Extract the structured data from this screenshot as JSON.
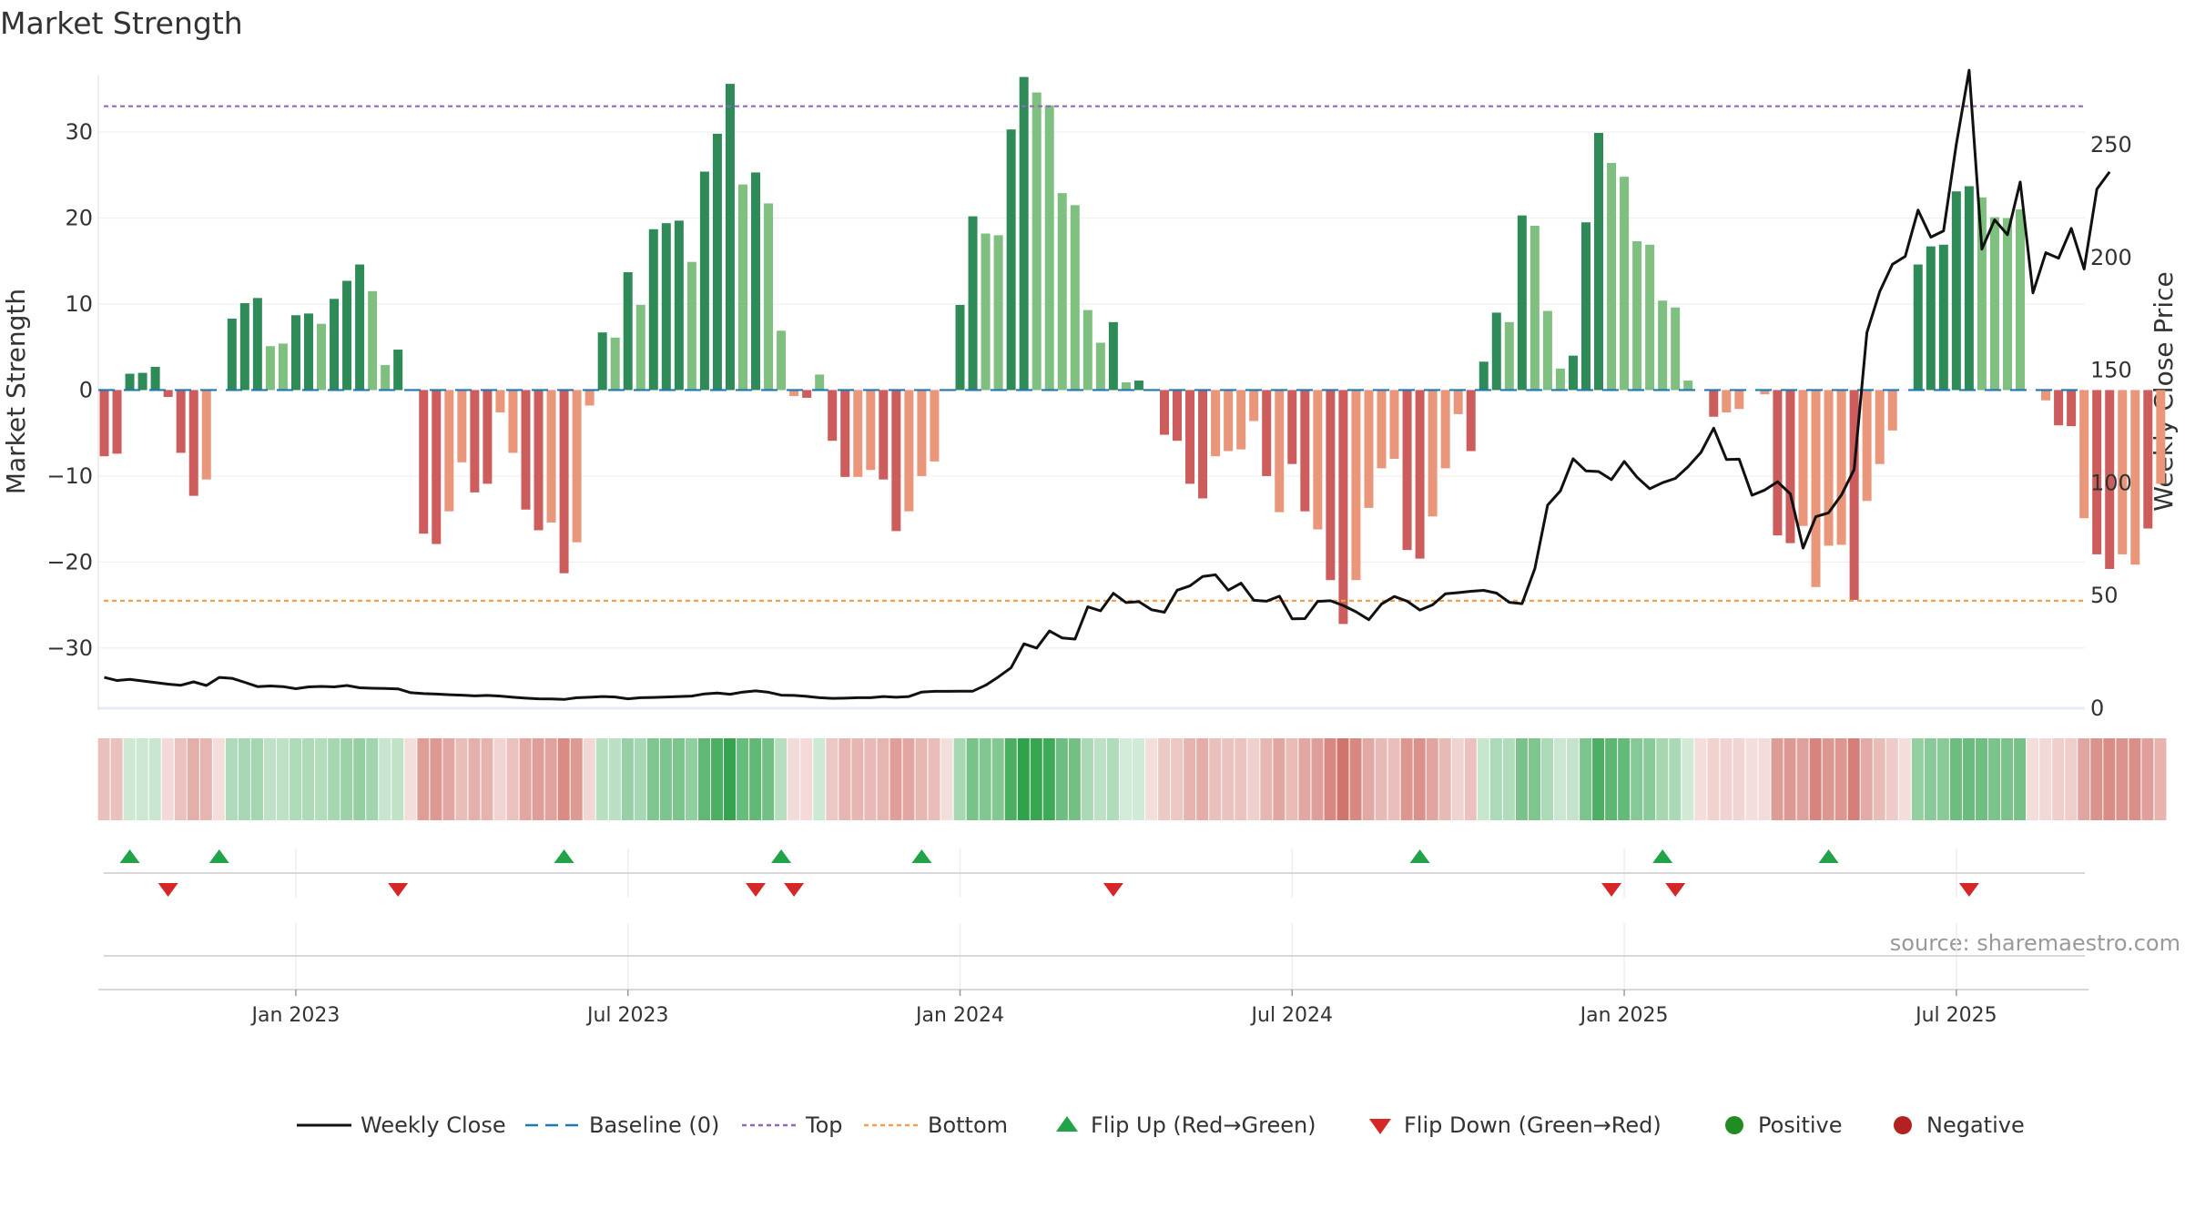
{
  "chart_data": {
    "type": "bar",
    "title": "Market Strength",
    "ylabel_left": "Market Strength",
    "ylabel_right": "Weekly Close Price",
    "source": "source: sharemaestro.com",
    "ylim_left": [
      -37,
      39
    ],
    "ylim_right": [
      0,
      290
    ],
    "yticks_left": [
      30,
      20,
      10,
      0,
      -10,
      -20,
      -30
    ],
    "yticks_left_labels": [
      "30",
      "20",
      "10",
      "0",
      "−10",
      "−20",
      "−30"
    ],
    "yticks_right": [
      250,
      200,
      150,
      100,
      50,
      0
    ],
    "x_ticks": [
      {
        "index": 15,
        "label": "Jan 2023"
      },
      {
        "index": 41,
        "label": "Jul 2023"
      },
      {
        "index": 67,
        "label": "Jan 2024"
      },
      {
        "index": 93,
        "label": "Jul 2024"
      },
      {
        "index": 119,
        "label": "Jan 2025"
      },
      {
        "index": 145,
        "label": "Jul 2025"
      }
    ],
    "top_level": 33,
    "bottom_level": -24.5,
    "colors": {
      "dark_green": "#2e8b57",
      "light_green": "#7fbf7f",
      "dark_red": "#cd5c5c",
      "light_red": "#e9967a",
      "close_line": "#111111",
      "baseline": "#1f77b4",
      "top_line": "#9467bd",
      "bottom_line": "#f0a050",
      "flip_up": "#22a34a",
      "flip_down": "#d62728",
      "positive": "#228b22",
      "negative": "#b22222"
    },
    "strength": [
      -7.7,
      -7.4,
      1.9,
      2.0,
      2.7,
      -0.8,
      -7.3,
      -12.3,
      -10.4,
      0,
      8.3,
      10.1,
      10.7,
      5.1,
      5.4,
      8.7,
      8.9,
      7.7,
      10.6,
      12.7,
      14.6,
      11.5,
      2.9,
      4.7,
      0,
      -16.7,
      -17.9,
      -14.1,
      -8.4,
      -11.9,
      -10.9,
      -2.6,
      -7.3,
      -13.9,
      -16.3,
      -15.4,
      -21.3,
      -17.7,
      -1.8,
      6.7,
      6.1,
      13.7,
      9.9,
      18.7,
      19.4,
      19.7,
      14.9,
      25.4,
      29.8,
      35.6,
      23.9,
      25.3,
      21.7,
      6.9,
      -0.7,
      -0.9,
      1.8,
      -5.9,
      -10.1,
      -10.1,
      -9.3,
      -10.4,
      -16.4,
      -14.1,
      -10.0,
      -8.3,
      0,
      9.9,
      20.2,
      18.2,
      18.0,
      30.3,
      36.4,
      34.6,
      33.1,
      22.9,
      21.5,
      9.3,
      5.5,
      7.9,
      0.9,
      1.1,
      0,
      -5.2,
      -5.9,
      -10.9,
      -12.6,
      -7.7,
      -7.1,
      -6.9,
      -3.6,
      -10.0,
      -14.2,
      -8.6,
      -14.1,
      -16.2,
      -22.1,
      -27.2,
      -22.1,
      -13.7,
      -9.1,
      -8.0,
      -18.6,
      -19.6,
      -14.7,
      -9.1,
      -2.8,
      -7.1,
      3.3,
      9.0,
      7.9,
      20.3,
      19.1,
      9.2,
      2.5,
      4.0,
      19.5,
      29.9,
      26.4,
      24.8,
      17.3,
      16.9,
      10.4,
      9.6,
      1.1,
      0,
      -3.1,
      -2.6,
      -2.2,
      0,
      -0.5,
      -16.9,
      -17.8,
      -15.8,
      -22.9,
      -18.1,
      -18.0,
      -24.4,
      -12.9,
      -8.6,
      -4.7,
      0,
      14.6,
      16.7,
      16.9,
      23.1,
      23.7,
      22.4,
      20.1,
      20.0,
      21.0,
      0,
      -1.2,
      -4.1,
      -4.2,
      -14.9,
      -19.1,
      -20.8,
      -19.1,
      -20.3,
      -16.1,
      -10.9
    ],
    "shade": [
      1,
      1,
      1,
      1,
      1,
      1,
      1,
      1,
      0,
      0,
      1,
      1,
      1,
      0,
      0,
      1,
      1,
      0,
      1,
      1,
      1,
      0,
      0,
      1,
      0,
      1,
      1,
      0,
      0,
      1,
      1,
      0,
      0,
      1,
      1,
      0,
      1,
      0,
      0,
      1,
      0,
      1,
      0,
      1,
      1,
      1,
      0,
      1,
      1,
      1,
      0,
      1,
      0,
      0,
      0,
      1,
      0,
      1,
      1,
      0,
      0,
      1,
      1,
      0,
      0,
      0,
      0,
      1,
      1,
      0,
      0,
      1,
      1,
      0,
      0,
      0,
      0,
      0,
      0,
      1,
      0,
      1,
      0,
      1,
      1,
      1,
      1,
      0,
      0,
      0,
      0,
      1,
      0,
      1,
      1,
      0,
      1,
      1,
      0,
      0,
      0,
      0,
      1,
      1,
      0,
      0,
      0,
      1,
      1,
      1,
      0,
      1,
      0,
      0,
      0,
      1,
      1,
      1,
      0,
      0,
      0,
      0,
      0,
      0,
      0,
      0,
      1,
      0,
      0,
      0,
      0,
      1,
      1,
      0,
      0,
      0,
      0,
      1,
      0,
      0,
      0,
      0,
      1,
      1,
      1,
      1,
      1,
      0,
      0,
      0,
      0,
      1,
      0,
      1,
      1,
      0,
      1,
      1,
      0,
      0,
      1,
      0,
      0
    ],
    "weekly_close": [
      13.7,
      12.3,
      12.8,
      12.1,
      11.4,
      10.7,
      10.2,
      11.7,
      10.1,
      13.7,
      13.3,
      11.5,
      9.6,
      9.9,
      9.6,
      8.7,
      9.5,
      9.7,
      9.5,
      10.1,
      9.1,
      8.9,
      8.8,
      8.6,
      6.9,
      6.5,
      6.3,
      6.0,
      5.8,
      5.5,
      5.7,
      5.4,
      4.9,
      4.5,
      4.2,
      4.1,
      3.9,
      4.7,
      4.9,
      5.2,
      5.0,
      4.2,
      4.7,
      4.8,
      5.0,
      5.2,
      5.4,
      6.4,
      6.8,
      6.2,
      7.2,
      7.7,
      7.1,
      5.8,
      5.7,
      5.3,
      4.7,
      4.4,
      4.5,
      4.7,
      4.7,
      5.2,
      4.9,
      5.2,
      7.2,
      7.5,
      7.5,
      7.6,
      7.6,
      10.2,
      13.9,
      18.0,
      28.6,
      26.7,
      34.3,
      31.2,
      30.7,
      45.0,
      43.2,
      51.0,
      46.9,
      47.3,
      43.7,
      42.6,
      52.4,
      54.3,
      58.5,
      59.2,
      52.4,
      55.5,
      47.9,
      47.5,
      49.7,
      39.7,
      39.8,
      47.4,
      47.7,
      45.6,
      42.8,
      39.3,
      46.3,
      49.6,
      47.5,
      43.6,
      45.9,
      50.8,
      51.3,
      51.9,
      52.3,
      51.1,
      47.0,
      46.4,
      62.0,
      90.1,
      96.4,
      110.7,
      105.3,
      105.0,
      101.4,
      109.5,
      102.5,
      97.4,
      100.1,
      102.0,
      107.2,
      113.5,
      124.3,
      110.4,
      110.5,
      94.5,
      96.8,
      100.5,
      95.1,
      71.1,
      85.0,
      86.7,
      94.6,
      106.0,
      166.7,
      184.9,
      197.0,
      200.5,
      221.0,
      209.0,
      211.8,
      250.2,
      283.1,
      203.7,
      216.7,
      210.1,
      233.5,
      184.3,
      202.1,
      199.7,
      212.9,
      194.9,
      230.3,
      238.0
    ],
    "flip_up": [
      2,
      9,
      36,
      53,
      64,
      103,
      122,
      135
    ],
    "flip_down": [
      5,
      23,
      51,
      54,
      79,
      118,
      123,
      146
    ],
    "legend": [
      "Weekly Close",
      "Baseline (0)",
      "Top",
      "Bottom",
      "Flip Up (Red→Green)",
      "Flip Down (Green→Red)",
      "Positive",
      "Negative"
    ]
  }
}
